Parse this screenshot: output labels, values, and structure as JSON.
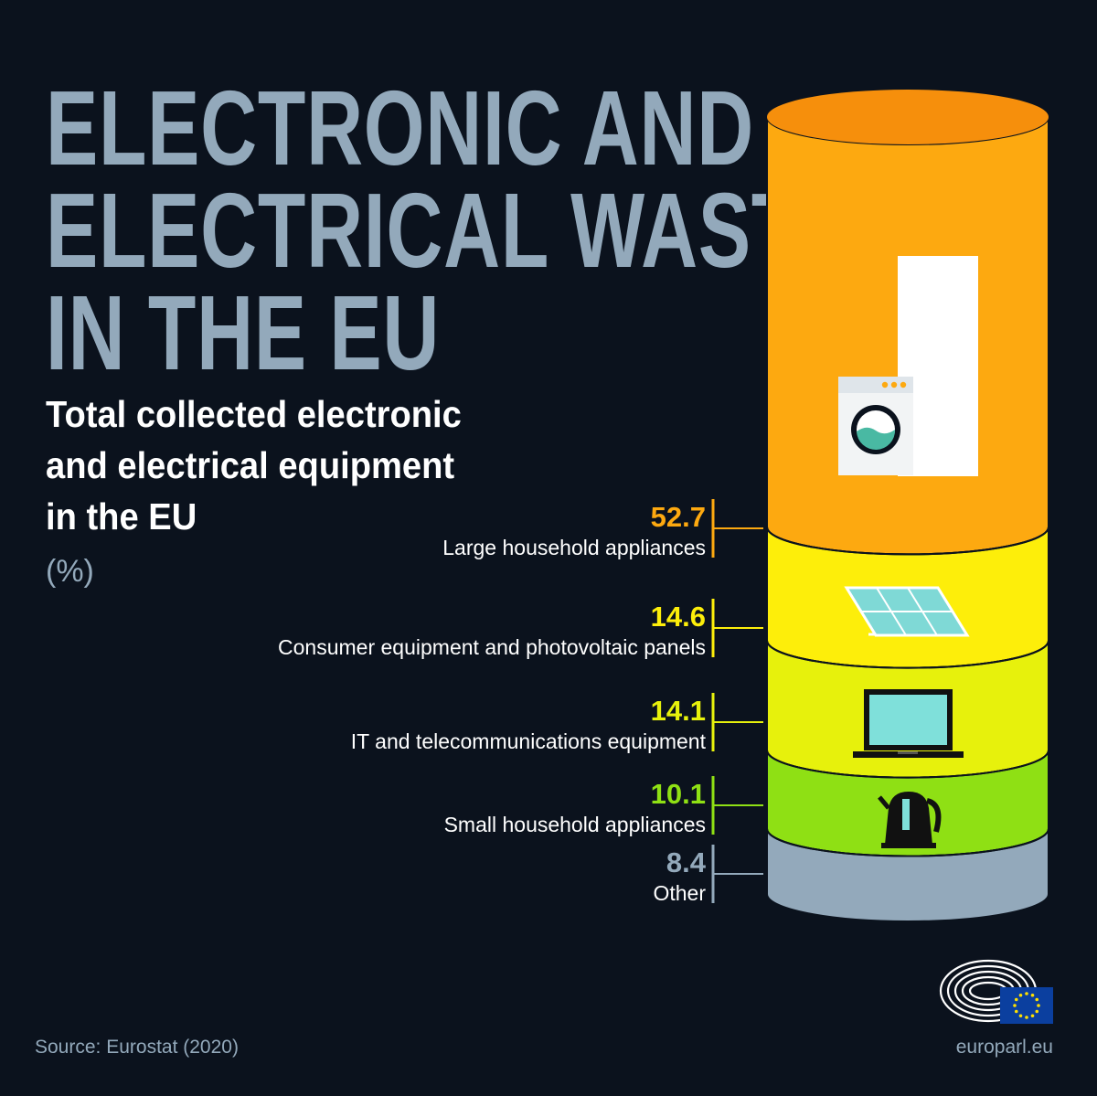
{
  "title_lines": [
    "ELECTRONIC AND",
    "ELECTRICAL WASTE",
    "IN THE EU"
  ],
  "subtitle_lines": [
    "Total collected electronic",
    "and electrical equipment",
    "in the EU"
  ],
  "unit": "(%)",
  "source": "Source: Eurostat (2020)",
  "site": "europarl.eu",
  "colors": {
    "background": "#0b121d",
    "title": "#93a9bb",
    "large": "#fda910",
    "consumer": "#fdee0a",
    "it": "#e7f10c",
    "small": "#8fe014",
    "other": "#93a9bb"
  },
  "icons": [
    "washing-machine-icon",
    "solar-panel-icon",
    "laptop-icon",
    "kettle-icon",
    "parliament-logo-icon",
    "eu-flag-icon"
  ],
  "chart_data": {
    "type": "bar",
    "stacked": true,
    "unit": "%",
    "categories": [
      "Large household appliances",
      "Consumer equipment and photovoltaic panels",
      "IT and telecommunications equipment",
      "Small household appliances",
      "Other"
    ],
    "values": [
      52.7,
      14.6,
      14.1,
      10.1,
      8.4
    ],
    "value_labels": [
      "52.7",
      "14.6",
      "14.1",
      "10.1",
      "8.4"
    ],
    "colors": [
      "#fda910",
      "#fdee0a",
      "#e7f10c",
      "#8fe014",
      "#93a9bb"
    ],
    "label_colors": [
      "#fda910",
      "#fdee0a",
      "#e7f10c",
      "#8fe014",
      "#93a9bb"
    ]
  }
}
